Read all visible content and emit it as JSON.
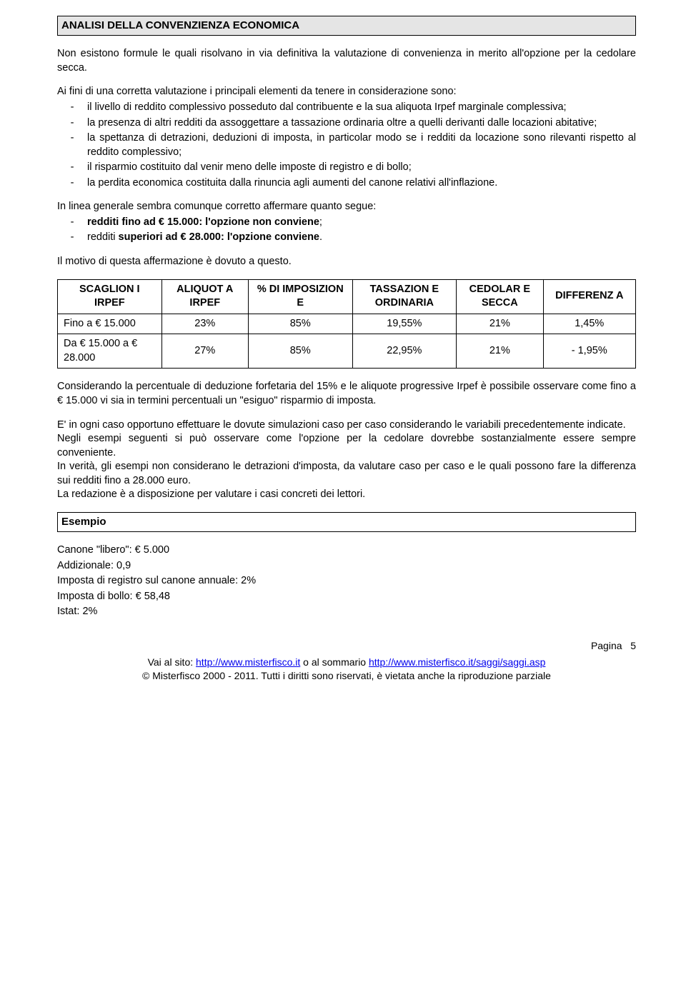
{
  "header": {
    "title": "ANALISI DELLA CONVENZIENZA ECONOMICA"
  },
  "para1": "Non esistono formule le quali risolvano in via definitiva la valutazione di convenienza in merito all'opzione per la cedolare secca.",
  "para2_intro": "Ai fini di una corretta valutazione i principali elementi da tenere in considerazione sono:",
  "bullets1": [
    "il livello di reddito complessivo posseduto dal contribuente e la sua aliquota Irpef marginale complessiva;",
    "la presenza di altri redditi da assoggettare a tassazione ordinaria oltre a quelli derivanti dalle locazioni abitative;",
    "la spettanza di detrazioni, deduzioni di imposta, in particolar modo se i redditi da locazione sono rilevanti rispetto al reddito complessivo;",
    "il risparmio costituito dal venir meno delle imposte di registro e di bollo;",
    "la perdita economica costituita dalla rinuncia agli aumenti del canone relativi all'inflazione."
  ],
  "para3_intro": "In linea generale sembra comunque corretto affermare quanto segue:",
  "bullets2": [
    {
      "prefix": "redditi fino ad € 15.000",
      "suffix": ": l'opzione non conviene",
      "trail": ";"
    },
    {
      "prefix": "redditi ",
      "mid": "superiori ad € 28.000",
      "suffix": ": l'opzione conviene",
      "trail": "."
    }
  ],
  "para4": "Il motivo di questa affermazione è dovuto a questo.",
  "table": {
    "headers": [
      "SCAGLION I IRPEF",
      "ALIQUOT A IRPEF",
      "% DI IMPOSIZION E",
      "TASSAZION E ORDINARIA",
      "CEDOLAR E SECCA",
      "DIFFERENZ A"
    ],
    "rows": [
      {
        "label": "Fino a € 15.000",
        "aliq": "23%",
        "imp": "85%",
        "tax": "19,55%",
        "ced": "21%",
        "diff": "1,45%"
      },
      {
        "label": "Da € 15.000 a € 28.000",
        "aliq": "27%",
        "imp": "85%",
        "tax": "22,95%",
        "ced": "21%",
        "diff": "- 1,95%"
      }
    ],
    "col_widths": [
      "18%",
      "15%",
      "18%",
      "18%",
      "15%",
      "16%"
    ]
  },
  "para5": "Considerando la percentuale di deduzione forfetaria del 15% e le aliquote progressive Irpef è possibile osservare come fino a € 15.000 vi sia in termini percentuali un \"esiguo\" risparmio di imposta.",
  "para6_lines": [
    "E' in ogni caso opportuno effettuare le dovute simulazioni caso per caso considerando le variabili precedentemente indicate.",
    "Negli esempi seguenti si può osservare come l'opzione per la cedolare dovrebbe sostanzialmente essere sempre conveniente.",
    "In verità, gli esempi non considerano le detrazioni d'imposta, da valutare caso per caso e le quali possono fare la differenza sui redditi fino a 28.000 euro.",
    "La redazione è a disposizione per valutare i casi concreti dei lettori."
  ],
  "example": {
    "title": "Esempio",
    "lines": [
      "Canone \"libero\": € 5.000",
      "Addizionale: 0,9",
      "Imposta di registro sul canone annuale: 2%",
      "Imposta di bollo: € 58,48",
      "Istat: 2%"
    ]
  },
  "footer": {
    "page_label": "Pagina",
    "page_num": "5",
    "links_prefix": "Vai al sito: ",
    "link1": "http://www.misterfisco.it",
    "links_mid": " o al sommario ",
    "link2": "http://www.misterfisco.it/saggi/saggi.asp",
    "copyright": "© Misterfisco 2000 - 2011. Tutti i diritti sono riservati, è vietata anche la riproduzione parziale"
  }
}
